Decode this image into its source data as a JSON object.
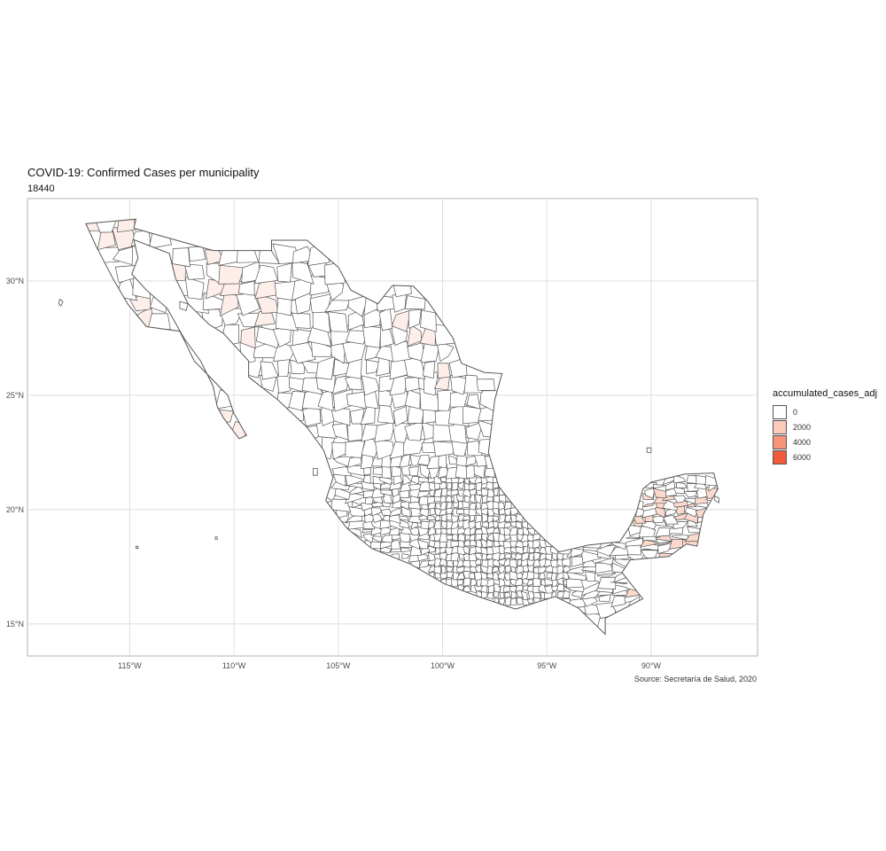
{
  "title": "COVID-19: Confirmed Cases per municipality",
  "subtitle": "18440",
  "caption": "Source: Secretaría de Salud, 2020",
  "legend": {
    "title": "accumulated_cases_adj",
    "entries": [
      {
        "label": "0",
        "color": "#ffffff"
      },
      {
        "label": "2000",
        "color": "#fbcbb8"
      },
      {
        "label": "4000",
        "color": "#f79479"
      },
      {
        "label": "6000",
        "color": "#f15a3b"
      }
    ]
  },
  "colors": {
    "panel_border": "#b3b3b3",
    "grid": "#dedede",
    "municipality_border": "#555555",
    "base_fill": "#ffffff",
    "light_fill": "#fdeee9",
    "medium_fill": "#fbd9cd"
  },
  "chart_data": {
    "type": "choropleth",
    "title": "COVID-19: Confirmed Cases per municipality",
    "subtitle": "18440",
    "fill_variable": "accumulated_cases_adj",
    "x_ticks": [
      "115°W",
      "110°W",
      "105°W",
      "100°W",
      "95°W",
      "90°W"
    ],
    "x_tick_values": [
      -115,
      -110,
      -105,
      -100,
      -95,
      -90
    ],
    "y_ticks": [
      "15°N",
      "20°N",
      "25°N",
      "30°N"
    ],
    "y_tick_values": [
      15,
      20,
      25,
      30
    ],
    "xlim": [
      -119.9,
      -84.9
    ],
    "ylim": [
      13.6,
      33.6
    ],
    "grid": true,
    "legend_position": "right",
    "legend_breaks": [
      0,
      2000,
      4000,
      6000
    ]
  }
}
